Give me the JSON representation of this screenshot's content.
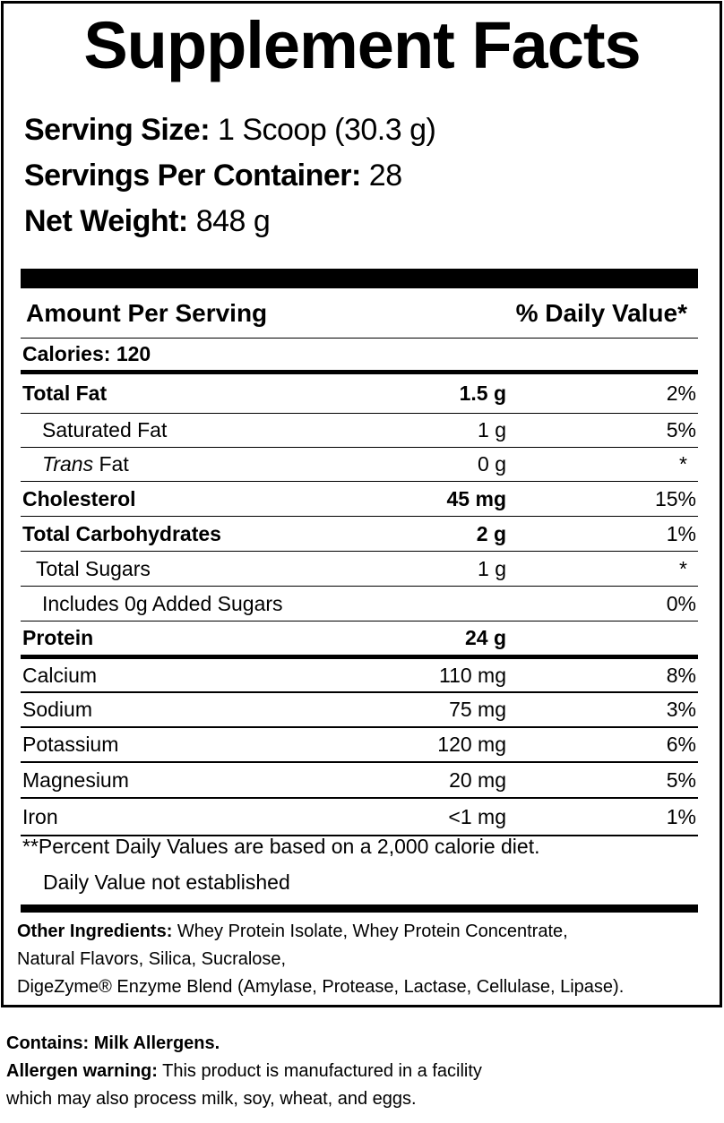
{
  "title": "Supplement Facts",
  "serving": [
    {
      "label": "Serving Size:",
      "value": " 1 Scoop (30.3 g)"
    },
    {
      "label": "Servings Per Container:",
      "value": " 28"
    },
    {
      "label": "Net Weight:",
      "value": " 848 g"
    }
  ],
  "header": {
    "amount": "Amount Per Serving",
    "dv": "% Daily Value*"
  },
  "calories": "Calories: 120",
  "rows": [
    {
      "name": "Total Fat",
      "amount": "1.5 g",
      "dv": "2%"
    },
    {
      "name": "Saturated Fat",
      "amount": "1 g",
      "dv": "5%"
    },
    {
      "name_italic": "Trans",
      "name": " Fat",
      "amount": "0 g",
      "dv": "*"
    },
    {
      "name": "Cholesterol",
      "amount": "45 mg",
      "dv": "15%"
    },
    {
      "name": "Total Carbohydrates",
      "amount": "2 g",
      "dv": "1%"
    },
    {
      "name": "Total Sugars",
      "amount": "1 g",
      "dv": "*"
    },
    {
      "name": "Includes 0g Added Sugars",
      "amount": "",
      "dv": "0%"
    },
    {
      "name": "Protein",
      "amount": "24 g",
      "dv": ""
    },
    {
      "name": "Calcium",
      "amount": "110 mg",
      "dv": "8%"
    },
    {
      "name": "Sodium",
      "amount": "75 mg",
      "dv": "3%"
    },
    {
      "name": "Potassium",
      "amount": "120 mg",
      "dv": "6%"
    },
    {
      "name": "Magnesium",
      "amount": "20 mg",
      "dv": "5%"
    },
    {
      "name": "Iron",
      "amount": "<1 mg",
      "dv": "1%"
    }
  ],
  "footnotes": [
    "**Percent Daily Values are based on a 2,000 calorie diet.",
    "Daily Value not established"
  ],
  "ingredients": {
    "label": "Other Ingredients:",
    "lines": [
      " Whey Protein Isolate, Whey Protein Concentrate,",
      "Natural Flavors, Silica, Sucralose,",
      "DigeZyme® Enzyme Blend (Amylase, Protease, Lactase, Cellulase, Lipase)."
    ]
  },
  "contains": "Contains: Milk Allergens.",
  "allergen": {
    "label": "Allergen warning:",
    "lines": [
      " This product is manufactured in a facility",
      "which may also process milk, soy, wheat, and eggs."
    ]
  }
}
